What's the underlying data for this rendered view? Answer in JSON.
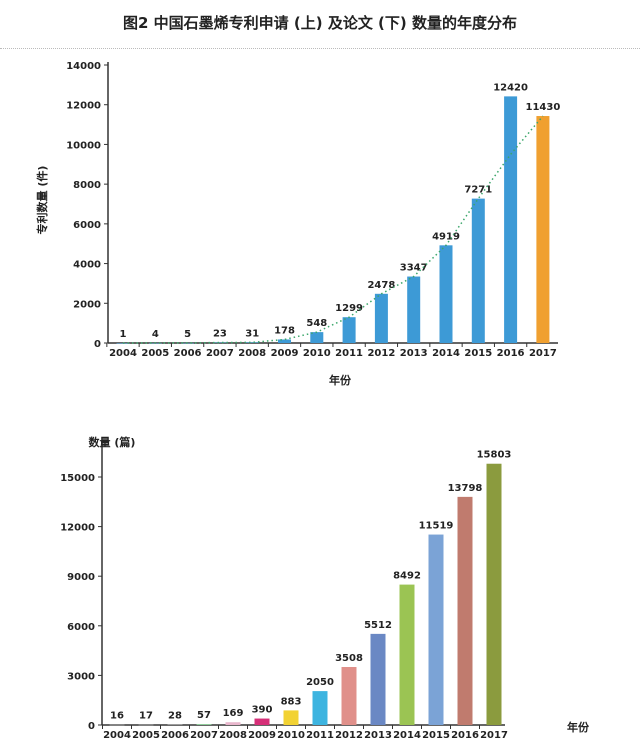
{
  "figure_title": "图2  中国石墨烯专利申请 (上) 及论文 (下) 数量的年度分布",
  "chart_data": [
    {
      "type": "bar",
      "title": "中国石墨烯专利申请",
      "xlabel": "年份",
      "ylabel": "专利数量 (件)",
      "ylim": [
        0,
        14000
      ],
      "yticks": [
        0,
        2000,
        4000,
        6000,
        8000,
        10000,
        12000,
        14000
      ],
      "categories": [
        "2004",
        "2005",
        "2006",
        "2007",
        "2008",
        "2009",
        "2010",
        "2011",
        "2012",
        "2013",
        "2014",
        "2015",
        "2016",
        "2017"
      ],
      "values": [
        1,
        4,
        5,
        23,
        31,
        178,
        548,
        1299,
        2478,
        3347,
        4919,
        7271,
        12420,
        11430
      ],
      "colors": [
        "#3d9ad6",
        "#3d9ad6",
        "#3d9ad6",
        "#3d9ad6",
        "#3d9ad6",
        "#3d9ad6",
        "#3d9ad6",
        "#3d9ad6",
        "#3d9ad6",
        "#3d9ad6",
        "#3d9ad6",
        "#3d9ad6",
        "#3d9ad6",
        "#f0a030"
      ],
      "trendline": {
        "style": "dotted",
        "color": "#3aa66a"
      }
    },
    {
      "type": "bar",
      "title": "中国石墨烯论文",
      "xlabel": "年份",
      "ylabel": "数量 (篇)",
      "ylim": [
        0,
        16500
      ],
      "yticks": [
        0,
        3000,
        6000,
        9000,
        12000,
        15000
      ],
      "categories": [
        "2004",
        "2005",
        "2006",
        "2007",
        "2008",
        "2009",
        "2010",
        "2011",
        "2012",
        "2013",
        "2014",
        "2015",
        "2016",
        "2017"
      ],
      "values": [
        16,
        17,
        28,
        57,
        169,
        390,
        883,
        2050,
        3508,
        5512,
        8492,
        11519,
        13798,
        15803
      ],
      "colors": [
        "#aaaaaa",
        "#aaaaaa",
        "#aaaaaa",
        "#8fcf9a",
        "#e8b6cc",
        "#d62f78",
        "#f2d233",
        "#3db4e0",
        "#e0908a",
        "#6a88c4",
        "#9bc453",
        "#7ba3d6",
        "#c07b6e",
        "#8b9b3e"
      ]
    }
  ]
}
